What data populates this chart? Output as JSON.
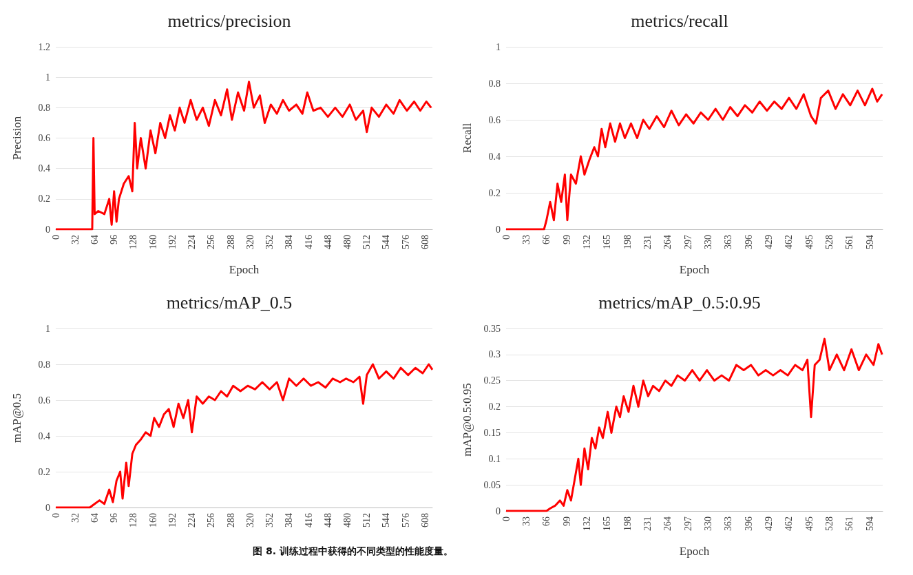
{
  "chart_data": [
    {
      "type": "line",
      "title": "metrics/precision",
      "xlabel": "Epoch",
      "ylabel": "Precision",
      "xlim": [
        0,
        620
      ],
      "xticks": [
        0,
        32,
        64,
        96,
        128,
        160,
        192,
        224,
        256,
        288,
        320,
        352,
        384,
        416,
        448,
        480,
        512,
        544,
        576,
        608
      ],
      "ylim": [
        0,
        1.2
      ],
      "yticks": [
        0,
        0.2,
        0.4,
        0.6,
        0.8,
        1,
        1.2
      ],
      "grid": "y",
      "marker": "none",
      "series": [
        {
          "color": "#ff0000",
          "x": [
            0,
            60,
            62,
            64,
            70,
            80,
            88,
            92,
            96,
            100,
            104,
            112,
            120,
            126,
            130,
            134,
            140,
            148,
            156,
            164,
            172,
            180,
            188,
            196,
            204,
            212,
            222,
            232,
            242,
            252,
            262,
            272,
            282,
            290,
            300,
            310,
            318,
            326,
            336,
            344,
            354,
            364,
            374,
            384,
            396,
            406,
            414,
            424,
            436,
            448,
            460,
            472,
            484,
            494,
            506,
            512,
            520,
            532,
            544,
            556,
            566,
            578,
            590,
            600,
            610,
            618
          ],
          "values": [
            0,
            0,
            0.6,
            0.1,
            0.12,
            0.1,
            0.2,
            0.03,
            0.25,
            0.05,
            0.2,
            0.3,
            0.35,
            0.25,
            0.7,
            0.4,
            0.6,
            0.4,
            0.65,
            0.5,
            0.7,
            0.6,
            0.75,
            0.65,
            0.8,
            0.7,
            0.85,
            0.72,
            0.8,
            0.68,
            0.85,
            0.75,
            0.92,
            0.72,
            0.9,
            0.78,
            0.97,
            0.8,
            0.88,
            0.7,
            0.82,
            0.76,
            0.85,
            0.78,
            0.82,
            0.76,
            0.9,
            0.78,
            0.8,
            0.74,
            0.8,
            0.74,
            0.82,
            0.72,
            0.78,
            0.64,
            0.8,
            0.74,
            0.82,
            0.76,
            0.85,
            0.78,
            0.84,
            0.78,
            0.84,
            0.8
          ]
        }
      ]
    },
    {
      "type": "line",
      "title": "metrics/recall",
      "xlabel": "Epoch",
      "ylabel": "Recall",
      "xlim": [
        0,
        615
      ],
      "xticks": [
        0,
        33,
        66,
        99,
        132,
        165,
        198,
        231,
        264,
        297,
        330,
        363,
        396,
        429,
        462,
        495,
        528,
        561,
        594
      ],
      "ylim": [
        0,
        1
      ],
      "yticks": [
        0,
        0.2,
        0.4,
        0.6,
        0.8,
        1
      ],
      "grid": "y",
      "marker": "none",
      "series": [
        {
          "color": "#ff0000",
          "x": [
            0,
            62,
            66,
            72,
            78,
            84,
            90,
            96,
            100,
            106,
            114,
            122,
            128,
            136,
            144,
            150,
            156,
            162,
            170,
            178,
            186,
            194,
            204,
            214,
            224,
            234,
            246,
            258,
            270,
            282,
            294,
            306,
            318,
            330,
            342,
            354,
            366,
            378,
            390,
            402,
            414,
            426,
            438,
            450,
            462,
            474,
            486,
            498,
            506,
            514,
            526,
            538,
            550,
            562,
            574,
            586,
            598,
            606,
            614
          ],
          "values": [
            0,
            0,
            0.05,
            0.15,
            0.05,
            0.25,
            0.15,
            0.3,
            0.05,
            0.3,
            0.25,
            0.4,
            0.3,
            0.38,
            0.45,
            0.4,
            0.55,
            0.45,
            0.58,
            0.48,
            0.58,
            0.5,
            0.58,
            0.5,
            0.6,
            0.55,
            0.62,
            0.56,
            0.65,
            0.57,
            0.63,
            0.58,
            0.64,
            0.6,
            0.66,
            0.6,
            0.67,
            0.62,
            0.68,
            0.64,
            0.7,
            0.65,
            0.7,
            0.66,
            0.72,
            0.66,
            0.74,
            0.62,
            0.58,
            0.72,
            0.76,
            0.66,
            0.74,
            0.68,
            0.76,
            0.68,
            0.77,
            0.7,
            0.74
          ]
        }
      ]
    },
    {
      "type": "line",
      "title": "metrics/mAP_0.5",
      "ylabel": "mAP@0.5",
      "xlim": [
        0,
        620
      ],
      "xticks": [
        0,
        32,
        64,
        96,
        128,
        160,
        192,
        224,
        256,
        288,
        320,
        352,
        384,
        416,
        448,
        480,
        512,
        544,
        576,
        608
      ],
      "ylim": [
        0,
        1
      ],
      "yticks": [
        0,
        0.2,
        0.4,
        0.6,
        0.8,
        1
      ],
      "grid": "y",
      "marker": "none",
      "annotations": [
        "图 8. 训练过程中获得的不同类型的性能度量。"
      ],
      "series": [
        {
          "color": "#ff0000",
          "x": [
            0,
            56,
            64,
            72,
            80,
            88,
            94,
            100,
            106,
            110,
            116,
            120,
            126,
            132,
            140,
            148,
            156,
            162,
            170,
            178,
            186,
            194,
            202,
            210,
            218,
            224,
            232,
            242,
            252,
            262,
            272,
            282,
            292,
            304,
            316,
            328,
            340,
            352,
            364,
            374,
            384,
            396,
            408,
            420,
            432,
            444,
            456,
            468,
            478,
            490,
            500,
            506,
            512,
            522,
            532,
            544,
            556,
            568,
            580,
            592,
            604,
            614,
            620
          ],
          "values": [
            0,
            0,
            0.02,
            0.04,
            0.02,
            0.1,
            0.03,
            0.15,
            0.2,
            0.05,
            0.25,
            0.12,
            0.3,
            0.35,
            0.38,
            0.42,
            0.4,
            0.5,
            0.45,
            0.52,
            0.55,
            0.45,
            0.58,
            0.5,
            0.6,
            0.42,
            0.62,
            0.58,
            0.62,
            0.6,
            0.65,
            0.62,
            0.68,
            0.65,
            0.68,
            0.66,
            0.7,
            0.66,
            0.7,
            0.6,
            0.72,
            0.68,
            0.72,
            0.68,
            0.7,
            0.67,
            0.72,
            0.7,
            0.72,
            0.7,
            0.73,
            0.58,
            0.74,
            0.8,
            0.72,
            0.76,
            0.72,
            0.78,
            0.74,
            0.78,
            0.75,
            0.8,
            0.77
          ]
        }
      ]
    },
    {
      "type": "line",
      "title": "metrics/mAP_0.5:0.95",
      "xlabel": "Epoch",
      "ylabel": "mAP@0.5:0.95",
      "xlim": [
        0,
        615
      ],
      "xticks": [
        0,
        33,
        66,
        99,
        132,
        165,
        198,
        231,
        264,
        297,
        330,
        363,
        396,
        429,
        462,
        495,
        528,
        561,
        594
      ],
      "ylim": [
        0,
        0.35
      ],
      "yticks": [
        0,
        0.05,
        0.1,
        0.15,
        0.2,
        0.25,
        0.3,
        0.35
      ],
      "grid": "y",
      "marker": "none",
      "series": [
        {
          "color": "#ff0000",
          "x": [
            0,
            66,
            72,
            80,
            88,
            94,
            100,
            106,
            112,
            118,
            122,
            128,
            134,
            140,
            146,
            152,
            158,
            166,
            172,
            180,
            186,
            192,
            200,
            208,
            216,
            224,
            232,
            240,
            250,
            260,
            270,
            280,
            292,
            304,
            316,
            328,
            340,
            352,
            364,
            376,
            388,
            400,
            412,
            424,
            436,
            448,
            460,
            472,
            484,
            492,
            498,
            504,
            512,
            520,
            528,
            540,
            552,
            564,
            576,
            588,
            600,
            608,
            614
          ],
          "values": [
            0,
            0,
            0.005,
            0.01,
            0.02,
            0.01,
            0.04,
            0.02,
            0.06,
            0.1,
            0.05,
            0.12,
            0.08,
            0.14,
            0.12,
            0.16,
            0.14,
            0.19,
            0.15,
            0.2,
            0.18,
            0.22,
            0.19,
            0.24,
            0.2,
            0.25,
            0.22,
            0.24,
            0.23,
            0.25,
            0.24,
            0.26,
            0.25,
            0.27,
            0.25,
            0.27,
            0.25,
            0.26,
            0.25,
            0.28,
            0.27,
            0.28,
            0.26,
            0.27,
            0.26,
            0.27,
            0.26,
            0.28,
            0.27,
            0.29,
            0.18,
            0.28,
            0.29,
            0.33,
            0.27,
            0.3,
            0.27,
            0.31,
            0.27,
            0.3,
            0.28,
            0.32,
            0.3
          ]
        }
      ]
    }
  ]
}
